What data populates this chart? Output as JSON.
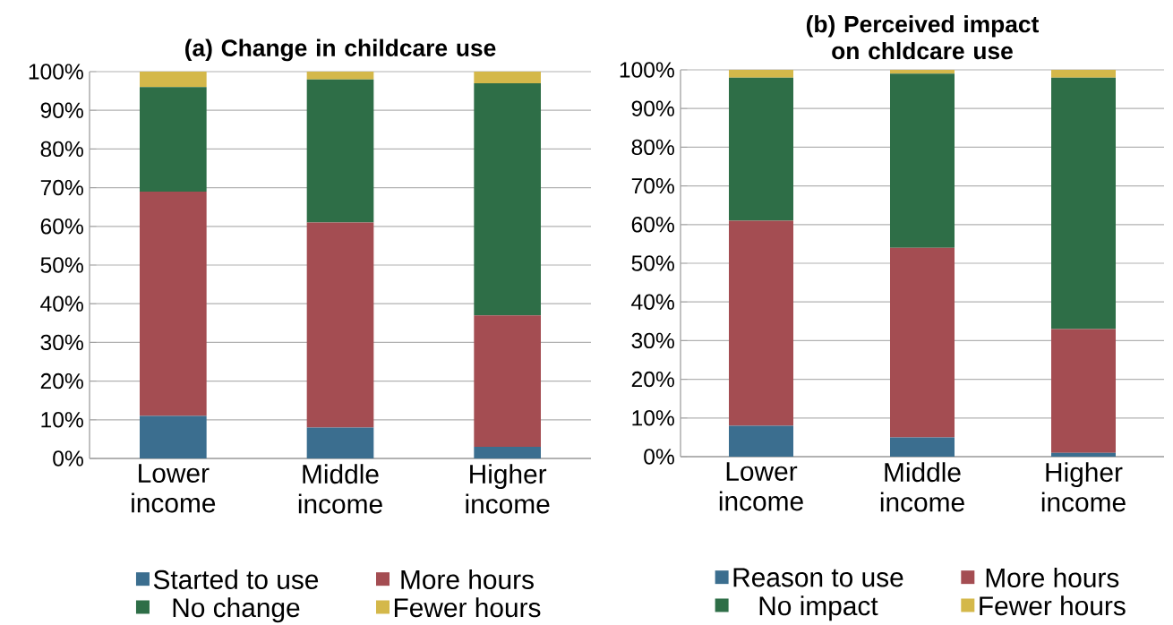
{
  "chart_data": [
    {
      "type": "bar",
      "stacked": true,
      "title": "(a) Change in childcare use",
      "categories": [
        "Lower income",
        "Middle income",
        "Higher income"
      ],
      "series": [
        {
          "name": "Started to use",
          "color": "#3b6e8f",
          "values": [
            11,
            8,
            3
          ]
        },
        {
          "name": "More hours",
          "color": "#a44d52",
          "values": [
            58,
            53,
            34
          ]
        },
        {
          "name": "No change",
          "color": "#2e6e47",
          "values": [
            27,
            37,
            60
          ]
        },
        {
          "name": "Fewer hours",
          "color": "#d4b84a",
          "values": [
            4,
            2,
            3
          ]
        }
      ],
      "ylim": [
        0,
        100
      ],
      "yticks": [
        {
          "value": 0,
          "label": "0%"
        },
        {
          "value": 10,
          "label": "10%"
        },
        {
          "value": 20,
          "label": "20%"
        },
        {
          "value": 30,
          "label": "30%"
        },
        {
          "value": 40,
          "label": "40%"
        },
        {
          "value": 50,
          "label": "50%"
        },
        {
          "value": 60,
          "label": "60%"
        },
        {
          "value": 70,
          "label": "70%"
        },
        {
          "value": 80,
          "label": "80%"
        },
        {
          "value": 90,
          "label": "90%"
        },
        {
          "value": 100,
          "label": "100%"
        }
      ],
      "grid": "y",
      "legend": "bottom"
    },
    {
      "type": "bar",
      "stacked": true,
      "title": "(b) Perceived impact on chldcare use",
      "categories": [
        "Lower income",
        "Middle income",
        "Higher income"
      ],
      "series": [
        {
          "name": "Reason to use",
          "color": "#3b6e8f",
          "values": [
            8,
            5,
            1
          ]
        },
        {
          "name": "More hours",
          "color": "#a44d52",
          "values": [
            53,
            49,
            32
          ]
        },
        {
          "name": "No impact",
          "color": "#2e6e47",
          "values": [
            37,
            45,
            65
          ]
        },
        {
          "name": "Fewer hours",
          "color": "#d4b84a",
          "values": [
            2,
            1,
            2
          ]
        }
      ],
      "ylim": [
        0,
        100
      ],
      "yticks": [
        {
          "value": 0,
          "label": "0%"
        },
        {
          "value": 10,
          "label": "10%"
        },
        {
          "value": 20,
          "label": "20%"
        },
        {
          "value": 30,
          "label": "30%"
        },
        {
          "value": 40,
          "label": "40%"
        },
        {
          "value": 50,
          "label": "50%"
        },
        {
          "value": 60,
          "label": "60%"
        },
        {
          "value": 70,
          "label": "70%"
        },
        {
          "value": 80,
          "label": "80%"
        },
        {
          "value": 90,
          "label": "90%"
        },
        {
          "value": 100,
          "label": "100%"
        }
      ],
      "grid": "y",
      "legend": "bottom"
    }
  ]
}
